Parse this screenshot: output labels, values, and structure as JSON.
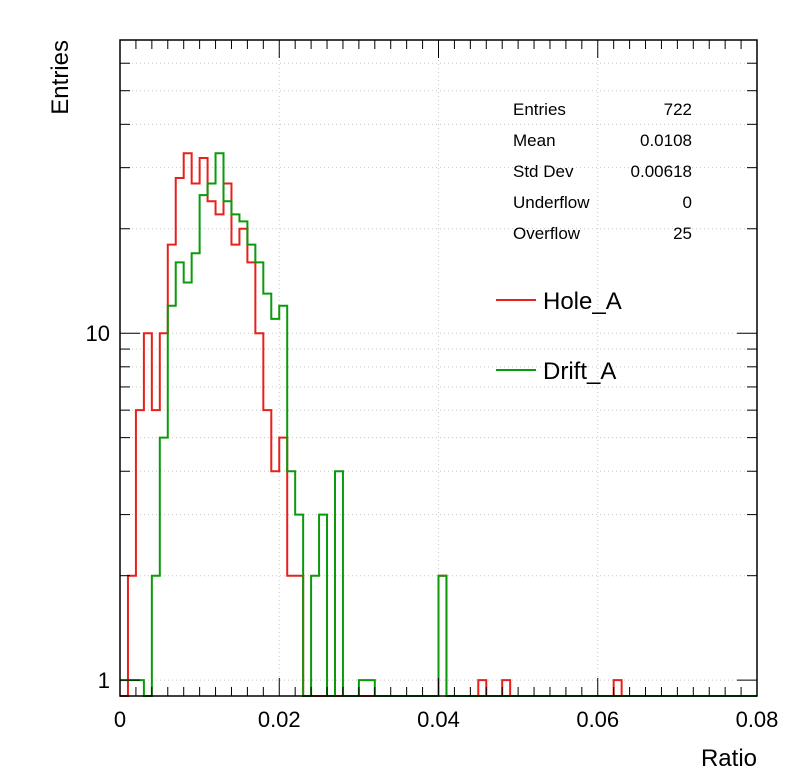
{
  "chart_data": {
    "type": "histogram",
    "xlabel": "Ratio",
    "ylabel": "Entries",
    "xlim": [
      0,
      0.08
    ],
    "ylim": [
      0.9,
      70
    ],
    "y_scale": "log",
    "grid": true,
    "x_ticks": [
      {
        "value": 0,
        "label": "0"
      },
      {
        "value": 0.02,
        "label": "0.02"
      },
      {
        "value": 0.04,
        "label": "0.04"
      },
      {
        "value": 0.06,
        "label": "0.06"
      },
      {
        "value": 0.08,
        "label": "0.08"
      }
    ],
    "y_ticks": [
      {
        "value": 1,
        "label": "1"
      },
      {
        "value": 10,
        "label": "10"
      }
    ],
    "legend": {
      "placement": "right",
      "entries": [
        {
          "label": "Hole_A",
          "color": "#e8201b"
        },
        {
          "label": "Drift_A",
          "color": "#0a9a0a"
        }
      ]
    },
    "stats": [
      {
        "label": "Entries",
        "value": "722"
      },
      {
        "label": "Mean",
        "value": "0.0108"
      },
      {
        "label": "Std Dev",
        "value": "0.00618"
      },
      {
        "label": "Underflow",
        "value": "0"
      },
      {
        "label": "Overflow",
        "value": "25"
      }
    ],
    "bin_edges": [
      0.0,
      0.001,
      0.002,
      0.003,
      0.004,
      0.005,
      0.006,
      0.007,
      0.008,
      0.009,
      0.01,
      0.011,
      0.012,
      0.013,
      0.014,
      0.015,
      0.016,
      0.017,
      0.018,
      0.019,
      0.02,
      0.021,
      0.022,
      0.023,
      0.024,
      0.025,
      0.026,
      0.027,
      0.028,
      0.029,
      0.03,
      0.031,
      0.032,
      0.033,
      0.034,
      0.035,
      0.036,
      0.037,
      0.038,
      0.039,
      0.04,
      0.041,
      0.042,
      0.043,
      0.044,
      0.045,
      0.046,
      0.047,
      0.048,
      0.049,
      0.05,
      0.051,
      0.052,
      0.053,
      0.054,
      0.055,
      0.056,
      0.057,
      0.058,
      0.059,
      0.06,
      0.061,
      0.062,
      0.063,
      0.064,
      0.065,
      0.066,
      0.067,
      0.068,
      0.069,
      0.07,
      0.071,
      0.072,
      0.073,
      0.074,
      0.075,
      0.076,
      0.077,
      0.078,
      0.079,
      0.08
    ],
    "series": [
      {
        "name": "Hole_A",
        "color": "#e8201b",
        "values": [
          0,
          2,
          6,
          10,
          6,
          10,
          18,
          28,
          33,
          27,
          32,
          24,
          22,
          27,
          18,
          20,
          16,
          10,
          6,
          4,
          5,
          2,
          2,
          0,
          0,
          0,
          0,
          0,
          0,
          0,
          0,
          0,
          0,
          0,
          0,
          0,
          0,
          0,
          0,
          0,
          2,
          0,
          0,
          0,
          0,
          1,
          0,
          0,
          1,
          0,
          0,
          0,
          0,
          0,
          0,
          0,
          0,
          0,
          0,
          0,
          0,
          0,
          1,
          0,
          0,
          0,
          0,
          0,
          0,
          0,
          0,
          0,
          0,
          0,
          0,
          0,
          0,
          0,
          0,
          0
        ]
      },
      {
        "name": "Drift_A",
        "color": "#0a9a0a",
        "values": [
          1,
          1,
          1,
          0,
          2,
          5,
          12,
          16,
          14,
          17,
          25,
          27,
          33,
          24,
          22,
          21,
          18,
          16,
          13,
          11,
          12,
          4,
          3,
          0,
          2,
          3,
          0,
          4,
          0,
          0,
          1,
          1,
          0,
          0,
          0,
          0,
          0,
          0,
          0,
          0,
          2,
          0,
          0,
          0,
          0,
          0,
          0,
          0,
          0,
          0,
          0,
          0,
          0,
          0,
          0,
          0,
          0,
          0,
          0,
          0,
          0,
          0,
          0,
          0,
          0,
          0,
          0,
          0,
          0,
          0,
          0,
          0,
          0,
          0,
          0,
          0,
          0,
          0,
          0,
          0
        ]
      }
    ]
  }
}
